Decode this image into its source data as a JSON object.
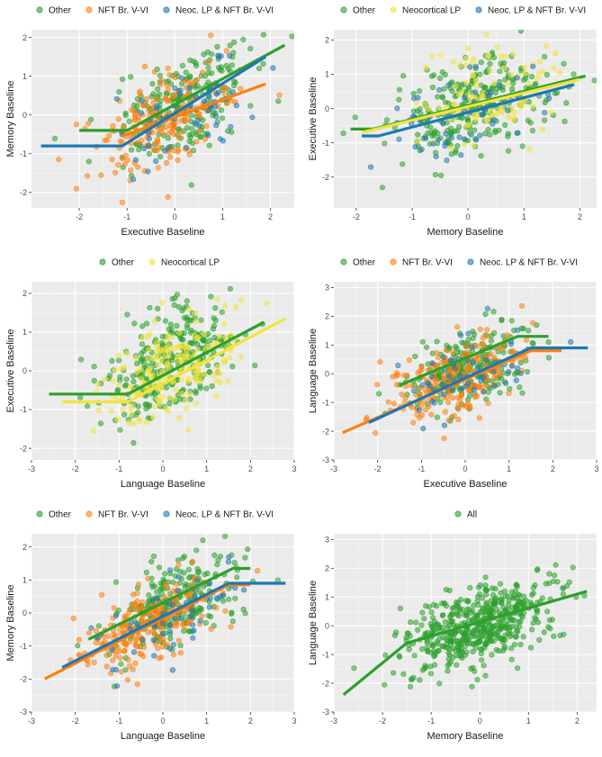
{
  "colors": {
    "Other": "#2ca02c",
    "NFT Br. V-VI": "#ff7f0e",
    "Neoc. LP & NFT Br. V-VI": "#1f77b4",
    "Neocortical LP": "#f2e33c",
    "All": "#2ca02c",
    "panel_bg": "#ebebeb",
    "grid": "#ffffff"
  },
  "chart_data": [
    {
      "type": "scatter",
      "xlabel": "Executive Baseline",
      "ylabel": "Memory Baseline",
      "xlim": [
        -3,
        2.5
      ],
      "ylim": [
        -2.4,
        2.2
      ],
      "xticks": [
        "-2",
        "-1",
        "0",
        "1",
        "2"
      ],
      "xtick_vals": [
        -2,
        -1,
        0,
        1,
        2
      ],
      "yticks": [
        "-2",
        "-1",
        "0",
        "1",
        "2"
      ],
      "ytick_vals": [
        -2,
        -1,
        0,
        1,
        2
      ],
      "legend": [
        "Other",
        "NFT Br. V-VI",
        "Neoc. LP & NFT Br. V-VI"
      ],
      "series": [
        {
          "name": "Other",
          "n": 230,
          "mx": 0.25,
          "sx": 0.75,
          "my": 0.3,
          "sy": 0.75,
          "r": 0.55,
          "line": [
            [
              -2.0,
              -0.4
            ],
            [
              -1.0,
              -0.4
            ],
            [
              2.3,
              1.8
            ]
          ]
        },
        {
          "name": "NFT Br. V-VI",
          "n": 200,
          "mx": -0.3,
          "sx": 0.7,
          "my": -0.1,
          "sy": 0.7,
          "r": 0.55,
          "line": [
            [
              -1.1,
              -0.55
            ],
            [
              1.9,
              0.8
            ]
          ]
        },
        {
          "name": "Neoc. LP & NFT Br. V-VI",
          "n": 60,
          "mx": 0.1,
          "sx": 0.85,
          "my": 0.0,
          "sy": 0.8,
          "r": 0.55,
          "line": [
            [
              -2.8,
              -0.8
            ],
            [
              -1.1,
              -0.8
            ],
            [
              1.9,
              1.5
            ]
          ]
        }
      ]
    },
    {
      "type": "scatter",
      "xlabel": "Memory Baseline",
      "ylabel": "Executive Baseline",
      "xlim": [
        -2.4,
        2.3
      ],
      "ylim": [
        -2.9,
        2.3
      ],
      "xticks": [
        "-2",
        "-1",
        "0",
        "1",
        "2"
      ],
      "xtick_vals": [
        -2,
        -1,
        0,
        1,
        2
      ],
      "yticks": [
        "-2",
        "-1",
        "0",
        "1",
        "2"
      ],
      "ytick_vals": [
        -2,
        -1,
        0,
        1,
        2
      ],
      "legend": [
        "Other",
        "Neocortical LP",
        "Neoc. LP & NFT Br. V-VI"
      ],
      "series": [
        {
          "name": "Other",
          "n": 280,
          "mx": 0.1,
          "sx": 0.8,
          "my": 0.1,
          "sy": 0.75,
          "r": 0.4,
          "line": [
            [
              -2.1,
              -0.6
            ],
            [
              -1.7,
              -0.6
            ],
            [
              2.1,
              0.95
            ]
          ]
        },
        {
          "name": "Neocortical LP",
          "n": 110,
          "mx": 0.3,
          "sx": 0.7,
          "my": 0.3,
          "sy": 0.7,
          "r": 0.4,
          "line": [
            [
              -1.9,
              -0.7
            ],
            [
              2.0,
              0.85
            ]
          ]
        },
        {
          "name": "Neoc. LP & NFT Br. V-VI",
          "n": 60,
          "mx": -0.1,
          "sx": 0.8,
          "my": -0.2,
          "sy": 0.7,
          "r": 0.4,
          "line": [
            [
              -1.9,
              -0.8
            ],
            [
              -1.6,
              -0.8
            ],
            [
              1.9,
              0.7
            ]
          ]
        }
      ]
    },
    {
      "type": "scatter",
      "xlabel": "Language Baseline",
      "ylabel": "Executive Baseline",
      "xlim": [
        -3,
        3
      ],
      "ylim": [
        -2.3,
        2.3
      ],
      "xticks": [
        "-3",
        "-2",
        "-1",
        "0",
        "1",
        "2",
        "3"
      ],
      "xtick_vals": [
        -3,
        -2,
        -1,
        0,
        1,
        2,
        3
      ],
      "yticks": [
        "-2",
        "-1",
        "0",
        "1",
        "2"
      ],
      "ytick_vals": [
        -2,
        -1,
        0,
        1,
        2
      ],
      "legend": [
        "Other",
        "Neocortical LP"
      ],
      "series": [
        {
          "name": "Other",
          "n": 300,
          "mx": 0.2,
          "sx": 0.75,
          "my": 0.2,
          "sy": 0.75,
          "r": 0.5,
          "line": [
            [
              -2.6,
              -0.6
            ],
            [
              -0.8,
              -0.6
            ],
            [
              2.3,
              1.25
            ]
          ]
        },
        {
          "name": "Neocortical LP",
          "n": 200,
          "mx": 0.2,
          "sx": 0.8,
          "my": 0.0,
          "sy": 0.7,
          "r": 0.5,
          "line": [
            [
              -2.3,
              -0.8
            ],
            [
              -0.8,
              -0.8
            ],
            [
              2.8,
              1.35
            ]
          ]
        }
      ]
    },
    {
      "type": "scatter",
      "xlabel": "Executive Baseline",
      "ylabel": "Language Baseline",
      "xlim": [
        -3,
        3
      ],
      "ylim": [
        -3,
        3.2
      ],
      "xticks": [
        "-3",
        "-2",
        "-1",
        "0",
        "1",
        "2",
        "3"
      ],
      "xtick_vals": [
        -3,
        -2,
        -1,
        0,
        1,
        2,
        3
      ],
      "yticks": [
        "-3",
        "-2",
        "-1",
        "0",
        "1",
        "2",
        "3"
      ],
      "ytick_vals": [
        -3,
        -2,
        -1,
        0,
        1,
        2,
        3
      ],
      "legend": [
        "Other",
        "NFT Br. V-VI",
        "Neoc. LP & NFT Br. V-VI"
      ],
      "series": [
        {
          "name": "Other",
          "n": 250,
          "mx": 0.1,
          "sx": 0.75,
          "my": 0.2,
          "sy": 0.75,
          "r": 0.5,
          "line": [
            [
              -1.5,
              -0.4
            ],
            [
              1.2,
              1.3
            ],
            [
              1.9,
              1.3
            ]
          ]
        },
        {
          "name": "NFT Br. V-VI",
          "n": 220,
          "mx": -0.2,
          "sx": 0.75,
          "my": -0.2,
          "sy": 0.75,
          "r": 0.5,
          "line": [
            [
              -2.8,
              -2.05
            ],
            [
              1.5,
              0.8
            ],
            [
              2.2,
              0.8
            ]
          ]
        },
        {
          "name": "Neoc. LP & NFT Br. V-VI",
          "n": 60,
          "mx": 0.0,
          "sx": 0.85,
          "my": 0.0,
          "sy": 0.8,
          "r": 0.5,
          "line": [
            [
              -2.2,
              -1.7
            ],
            [
              1.5,
              0.9
            ],
            [
              2.8,
              0.9
            ]
          ]
        }
      ]
    },
    {
      "type": "scatter",
      "xlabel": "Language Baseline",
      "ylabel": "Memory Baseline",
      "xlim": [
        -3,
        3
      ],
      "ylim": [
        -3,
        2.4
      ],
      "xticks": [
        "-3",
        "-2",
        "-1",
        "0",
        "1",
        "2",
        "3"
      ],
      "xtick_vals": [
        -3,
        -2,
        -1,
        0,
        1,
        2,
        3
      ],
      "yticks": [
        "-3",
        "-2",
        "-1",
        "0",
        "1",
        "2"
      ],
      "ytick_vals": [
        -3,
        -2,
        -1,
        0,
        1,
        2
      ],
      "legend": [
        "Other",
        "NFT Br. V-VI",
        "Neoc. LP & NFT Br. V-VI"
      ],
      "series": [
        {
          "name": "Other",
          "n": 260,
          "mx": 0.2,
          "sx": 0.75,
          "my": 0.3,
          "sy": 0.75,
          "r": 0.55,
          "line": [
            [
              -1.7,
              -0.8
            ],
            [
              1.6,
              1.35
            ],
            [
              2.0,
              1.35
            ]
          ]
        },
        {
          "name": "NFT Br. V-VI",
          "n": 220,
          "mx": -0.3,
          "sx": 0.75,
          "my": -0.3,
          "sy": 0.75,
          "r": 0.55,
          "line": [
            [
              -2.7,
              -2.0
            ],
            [
              1.5,
              0.85
            ],
            [
              2.0,
              0.85
            ]
          ]
        },
        {
          "name": "Neoc. LP & NFT Br. V-VI",
          "n": 60,
          "mx": 0.1,
          "sx": 0.85,
          "my": 0.0,
          "sy": 0.8,
          "r": 0.55,
          "line": [
            [
              -2.3,
              -1.65
            ],
            [
              1.5,
              0.9
            ],
            [
              2.8,
              0.9
            ]
          ]
        }
      ]
    },
    {
      "type": "scatter",
      "xlabel": "Memory Baseline",
      "ylabel": "Language Baseline",
      "xlim": [
        -3,
        2.4
      ],
      "ylim": [
        -3,
        3.2
      ],
      "xticks": [
        "-3",
        "-2",
        "-1",
        "0",
        "1",
        "2"
      ],
      "xtick_vals": [
        -3,
        -2,
        -1,
        0,
        1,
        2
      ],
      "yticks": [
        "-3",
        "-2",
        "-1",
        "0",
        "1",
        "2",
        "3"
      ],
      "ytick_vals": [
        -3,
        -2,
        -1,
        0,
        1,
        2,
        3
      ],
      "legend": [
        "All"
      ],
      "series": [
        {
          "name": "All",
          "n": 520,
          "mx": 0.0,
          "sx": 0.8,
          "my": 0.0,
          "sy": 0.8,
          "r": 0.55,
          "line": [
            [
              -2.8,
              -2.4
            ],
            [
              -1.5,
              -0.6
            ],
            [
              2.2,
              1.2
            ]
          ]
        }
      ]
    }
  ]
}
